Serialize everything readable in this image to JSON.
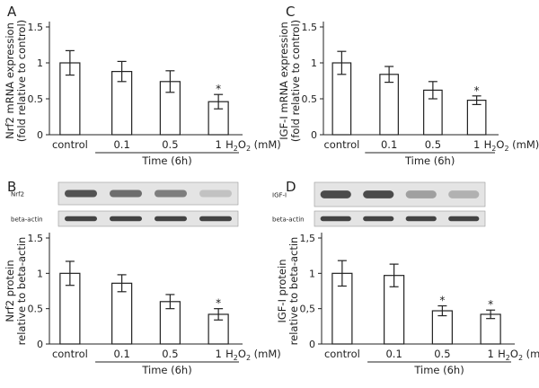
{
  "colors": {
    "axis": "#222222",
    "bar_fill": "#ffffff",
    "bar_stroke": "#222222",
    "blot_bg": "#e4e4e4",
    "band": "#3a3a3a"
  },
  "chart_data": [
    {
      "panel": "A",
      "type": "bar",
      "ylabel": [
        "Nrf2 mRNA expression",
        "(fold relative to control)"
      ],
      "ylim": [
        0,
        1.5
      ],
      "yticks": [
        "0",
        "0.5",
        "1",
        "1.5"
      ],
      "ytick_values": [
        0,
        0.5,
        1,
        1.5
      ],
      "categories": [
        "control",
        "0.1",
        "0.5",
        "1"
      ],
      "values": [
        1.0,
        0.88,
        0.74,
        0.46
      ],
      "errors": [
        0.17,
        0.14,
        0.15,
        0.1
      ],
      "significant": [
        "",
        "",
        "",
        "*"
      ],
      "x_unit_prefix": "H",
      "x_unit_sub": "2",
      "x_unit_suffix": "O",
      "x_unit_sub2": "2",
      "x_unit_tail": " (mM)",
      "group_label": "Time (6h)"
    },
    {
      "panel": "B",
      "type": "bar",
      "ylabel": [
        "Nrf2 protein",
        "relative to beta-actin"
      ],
      "ylim": [
        0,
        1.5
      ],
      "yticks": [
        "0",
        "0.5",
        "1",
        "1.5"
      ],
      "ytick_values": [
        0,
        0.5,
        1,
        1.5
      ],
      "categories": [
        "control",
        "0.1",
        "0.5",
        "1"
      ],
      "values": [
        1.0,
        0.86,
        0.6,
        0.42
      ],
      "errors": [
        0.17,
        0.12,
        0.1,
        0.08
      ],
      "significant": [
        "",
        "",
        "",
        "*"
      ],
      "x_unit_prefix": "H",
      "x_unit_sub": "2",
      "x_unit_suffix": "O",
      "x_unit_sub2": "2",
      "x_unit_tail": " (mM)",
      "group_label": "Time (6h)",
      "blot_labels": [
        "Nrf2",
        "beta-actin"
      ],
      "blot_band_intensity": [
        [
          0.85,
          0.7,
          0.6,
          0.2
        ],
        [
          0.95,
          0.95,
          0.95,
          0.95
        ]
      ]
    },
    {
      "panel": "C",
      "type": "bar",
      "ylabel": [
        "IGF-I mRNA expression",
        "(fold relative to control)"
      ],
      "ylim": [
        0,
        1.5
      ],
      "yticks": [
        "0",
        "0.5",
        "1",
        "1.5"
      ],
      "ytick_values": [
        0,
        0.5,
        1,
        1.5
      ],
      "categories": [
        "control",
        "0.1",
        "0.5",
        "1"
      ],
      "values": [
        1.0,
        0.84,
        0.62,
        0.48
      ],
      "errors": [
        0.16,
        0.11,
        0.12,
        0.06
      ],
      "significant": [
        "",
        "",
        "",
        "*"
      ],
      "x_unit_prefix": "H",
      "x_unit_sub": "2",
      "x_unit_suffix": "O",
      "x_unit_sub2": "2",
      "x_unit_tail": " (mM)",
      "group_label": "Time (6h)"
    },
    {
      "panel": "D",
      "type": "bar",
      "ylabel": [
        "IGF-I protein",
        "relative to beta-actin"
      ],
      "ylim": [
        0,
        1.5
      ],
      "yticks": [
        "0",
        "0,5",
        "1",
        "1,5"
      ],
      "ytick_values": [
        0,
        0.5,
        1,
        1.5
      ],
      "categories": [
        "control",
        "0.1",
        "0.5",
        "1"
      ],
      "values": [
        1.0,
        0.97,
        0.47,
        0.42
      ],
      "errors": [
        0.18,
        0.16,
        0.07,
        0.06
      ],
      "significant": [
        "",
        "",
        "*",
        "*"
      ],
      "x_unit_prefix": "H",
      "x_unit_sub": "2",
      "x_unit_suffix": "O",
      "x_unit_sub2": "2",
      "x_unit_tail": " (mM)",
      "group_label": "Time (6h)",
      "blot_labels": [
        "IGF-I",
        "beta-actin"
      ],
      "blot_band_intensity": [
        [
          0.9,
          0.9,
          0.4,
          0.3
        ],
        [
          0.95,
          0.95,
          0.95,
          0.95
        ]
      ]
    }
  ]
}
